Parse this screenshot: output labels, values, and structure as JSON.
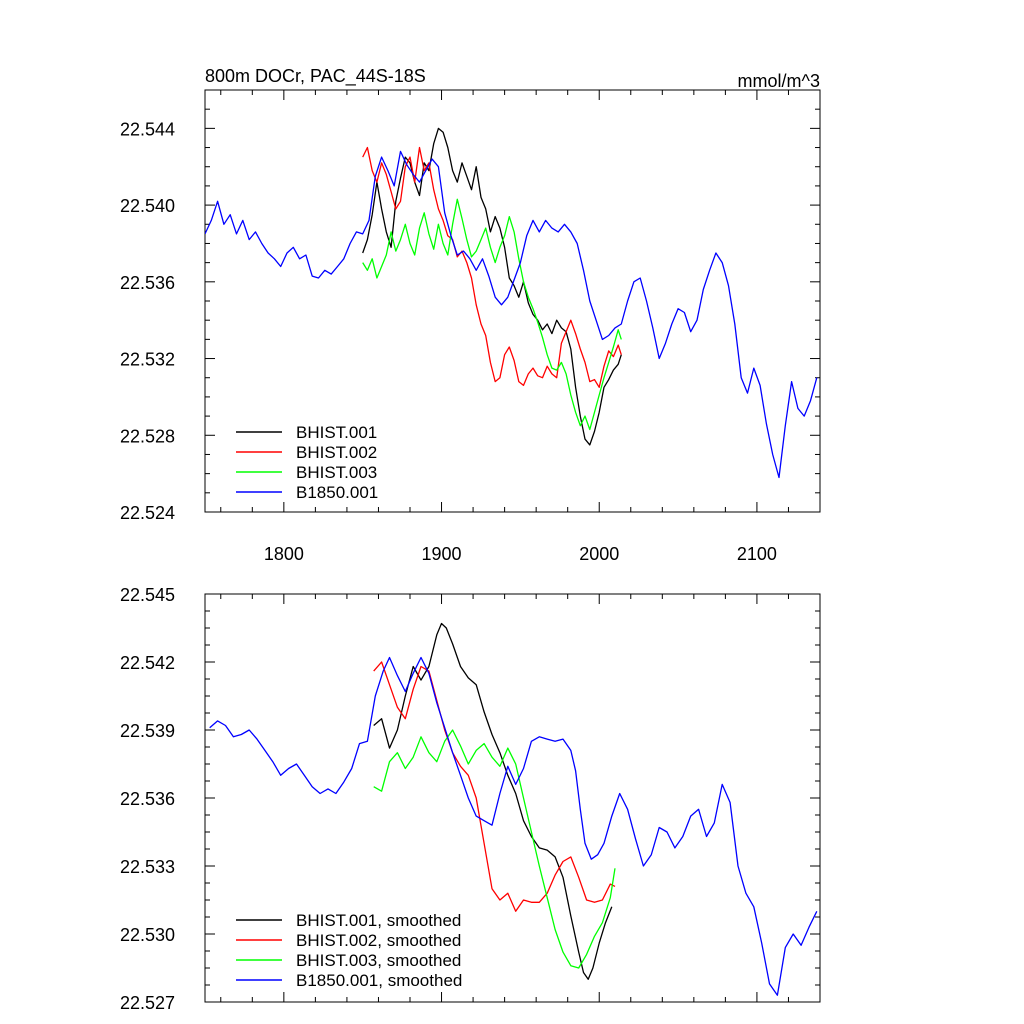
{
  "chart_data": [
    {
      "type": "line",
      "title": "800m DOCr, PAC_44S-18S",
      "units": "mmol/m^3",
      "xlim": [
        1750,
        2140
      ],
      "ylim": [
        22.524,
        22.546
      ],
      "xticks": [
        1800,
        1900,
        2000,
        2100
      ],
      "xtick_labels": [
        "1800",
        "1900",
        "2000",
        "2100"
      ],
      "yticks": [
        22.524,
        22.528,
        22.532,
        22.536,
        22.54,
        22.544
      ],
      "ytick_labels": [
        "22.524",
        "22.528",
        "22.532",
        "22.536",
        "22.540",
        "22.544"
      ],
      "legend_position": "bottom-left",
      "series": [
        {
          "name": "BHIST.001",
          "color": "#000000",
          "x": [
            1850,
            1853,
            1856,
            1859,
            1862,
            1865,
            1868,
            1871,
            1874,
            1877,
            1880,
            1883,
            1886,
            1889,
            1892,
            1895,
            1898,
            1901,
            1904,
            1907,
            1910,
            1913,
            1916,
            1919,
            1922,
            1925,
            1928,
            1931,
            1934,
            1937,
            1940,
            1943,
            1946,
            1949,
            1952,
            1955,
            1958,
            1961,
            1964,
            1967,
            1970,
            1973,
            1976,
            1979,
            1982,
            1985,
            1988,
            1991,
            1994,
            1997,
            2000,
            2003,
            2006,
            2009,
            2012,
            2014
          ],
          "y": [
            22.5375,
            22.5382,
            22.5395,
            22.5412,
            22.5398,
            22.5386,
            22.5378,
            22.5402,
            22.5414,
            22.5425,
            22.5422,
            22.5412,
            22.5405,
            22.5422,
            22.5418,
            22.5432,
            22.544,
            22.5438,
            22.543,
            22.5418,
            22.5412,
            22.5422,
            22.5415,
            22.5408,
            22.542,
            22.5404,
            22.5398,
            22.5386,
            22.5394,
            22.5388,
            22.5378,
            22.5362,
            22.5358,
            22.5352,
            22.536,
            22.5349,
            22.5343,
            22.534,
            22.5335,
            22.5338,
            22.5333,
            22.534,
            22.5336,
            22.5334,
            22.5325,
            22.5305,
            22.529,
            22.5278,
            22.5275,
            22.5282,
            22.5292,
            22.5305,
            22.5309,
            22.5314,
            22.5317,
            22.5322
          ]
        },
        {
          "name": "BHIST.002",
          "color": "#ff0000",
          "x": [
            1850,
            1853,
            1856,
            1859,
            1862,
            1865,
            1868,
            1871,
            1874,
            1877,
            1880,
            1883,
            1886,
            1889,
            1892,
            1895,
            1898,
            1901,
            1904,
            1907,
            1910,
            1913,
            1916,
            1919,
            1922,
            1925,
            1928,
            1931,
            1934,
            1937,
            1940,
            1943,
            1946,
            1949,
            1952,
            1955,
            1958,
            1961,
            1964,
            1967,
            1970,
            1973,
            1976,
            1979,
            1982,
            1985,
            1988,
            1991,
            1994,
            1997,
            2000,
            2003,
            2006,
            2009,
            2012,
            2014
          ],
          "y": [
            22.5425,
            22.543,
            22.5418,
            22.5412,
            22.5422,
            22.5416,
            22.5407,
            22.5398,
            22.5402,
            22.542,
            22.5425,
            22.5412,
            22.543,
            22.5418,
            22.5422,
            22.5408,
            22.5398,
            22.5392,
            22.5384,
            22.5382,
            22.5373,
            22.5376,
            22.537,
            22.5362,
            22.5348,
            22.5338,
            22.5332,
            22.5318,
            22.5308,
            22.531,
            22.5322,
            22.5326,
            22.5319,
            22.5308,
            22.5306,
            22.5312,
            22.5315,
            22.5311,
            22.531,
            22.5316,
            22.5312,
            22.531,
            22.5328,
            22.5334,
            22.534,
            22.5333,
            22.5325,
            22.5318,
            22.5308,
            22.5309,
            22.5305,
            22.5316,
            22.5324,
            22.5321,
            22.5327,
            22.5322
          ]
        },
        {
          "name": "BHIST.003",
          "color": "#00ff00",
          "x": [
            1850,
            1853,
            1856,
            1859,
            1862,
            1865,
            1868,
            1871,
            1874,
            1877,
            1880,
            1883,
            1886,
            1889,
            1892,
            1895,
            1898,
            1901,
            1904,
            1907,
            1910,
            1913,
            1916,
            1919,
            1922,
            1925,
            1928,
            1931,
            1934,
            1937,
            1940,
            1943,
            1946,
            1949,
            1952,
            1955,
            1958,
            1961,
            1964,
            1967,
            1970,
            1973,
            1976,
            1979,
            1982,
            1985,
            1988,
            1991,
            1994,
            1997,
            2000,
            2003,
            2006,
            2009,
            2012,
            2014
          ],
          "y": [
            22.537,
            22.5366,
            22.5372,
            22.5362,
            22.5368,
            22.5374,
            22.5386,
            22.5376,
            22.5382,
            22.539,
            22.538,
            22.5374,
            22.5388,
            22.5396,
            22.5385,
            22.5377,
            22.539,
            22.538,
            22.5374,
            22.539,
            22.5403,
            22.5393,
            22.5382,
            22.5373,
            22.5376,
            22.5382,
            22.5388,
            22.5378,
            22.537,
            22.5378,
            22.5384,
            22.5394,
            22.5386,
            22.5372,
            22.536,
            22.5352,
            22.5346,
            22.5339,
            22.5331,
            22.5322,
            22.5315,
            22.5314,
            22.5318,
            22.5312,
            22.5301,
            22.5292,
            22.5285,
            22.529,
            22.5283,
            22.5292,
            22.5301,
            22.531,
            22.5318,
            22.5326,
            22.5335,
            22.533
          ]
        },
        {
          "name": "B1850.001",
          "color": "#0000ff",
          "x": [
            1750,
            1754,
            1758,
            1762,
            1766,
            1770,
            1774,
            1778,
            1782,
            1786,
            1790,
            1794,
            1798,
            1802,
            1806,
            1810,
            1814,
            1818,
            1822,
            1826,
            1830,
            1834,
            1838,
            1842,
            1846,
            1850,
            1854,
            1858,
            1862,
            1866,
            1870,
            1874,
            1878,
            1882,
            1886,
            1890,
            1894,
            1898,
            1902,
            1906,
            1910,
            1914,
            1918,
            1922,
            1926,
            1930,
            1934,
            1938,
            1942,
            1946,
            1950,
            1954,
            1958,
            1962,
            1966,
            1970,
            1974,
            1978,
            1982,
            1986,
            1990,
            1994,
            1998,
            2002,
            2006,
            2010,
            2014,
            2018,
            2022,
            2026,
            2030,
            2034,
            2038,
            2042,
            2046,
            2050,
            2054,
            2058,
            2062,
            2066,
            2070,
            2074,
            2078,
            2082,
            2086,
            2090,
            2094,
            2098,
            2102,
            2106,
            2110,
            2114,
            2118,
            2122,
            2126,
            2130,
            2134,
            2138
          ],
          "y": [
            22.5385,
            22.5392,
            22.5402,
            22.539,
            22.5395,
            22.5385,
            22.5392,
            22.5382,
            22.5386,
            22.538,
            22.5375,
            22.5372,
            22.5368,
            22.5375,
            22.5378,
            22.5372,
            22.5374,
            22.5363,
            22.5362,
            22.5366,
            22.5364,
            22.5368,
            22.5372,
            22.538,
            22.5386,
            22.5385,
            22.5392,
            22.5415,
            22.5425,
            22.5418,
            22.541,
            22.5428,
            22.5421,
            22.5416,
            22.5412,
            22.5418,
            22.5424,
            22.542,
            22.5396,
            22.5384,
            22.5374,
            22.5376,
            22.5372,
            22.5366,
            22.5372,
            22.5363,
            22.5352,
            22.5348,
            22.5352,
            22.5361,
            22.537,
            22.5384,
            22.5392,
            22.5386,
            22.5392,
            22.5388,
            22.5386,
            22.539,
            22.5386,
            22.538,
            22.5366,
            22.535,
            22.534,
            22.533,
            22.5332,
            22.5336,
            22.5338,
            22.535,
            22.536,
            22.5362,
            22.535,
            22.5336,
            22.532,
            22.5328,
            22.5338,
            22.5346,
            22.5344,
            22.5334,
            22.534,
            22.5356,
            22.5366,
            22.5375,
            22.537,
            22.5358,
            22.5338,
            22.531,
            22.5302,
            22.5315,
            22.5306,
            22.5286,
            22.527,
            22.5258,
            22.5285,
            22.5308,
            22.5294,
            22.529,
            22.5298,
            22.531
          ]
        }
      ]
    },
    {
      "type": "line",
      "title": "",
      "xlim": [
        1750,
        2140
      ],
      "ylim": [
        22.527,
        22.545
      ],
      "yticks": [
        22.527,
        22.53,
        22.533,
        22.536,
        22.539,
        22.542,
        22.545
      ],
      "ytick_labels": [
        "22.527",
        "22.530",
        "22.533",
        "22.536",
        "22.539",
        "22.542",
        "22.545"
      ],
      "legend_position": "bottom-left",
      "series": [
        {
          "name": "BHIST.001, smoothed",
          "color": "#000000",
          "x": [
            1857,
            1862,
            1867,
            1872,
            1877,
            1882,
            1887,
            1892,
            1897,
            1900,
            1903,
            1907,
            1912,
            1917,
            1922,
            1927,
            1932,
            1937,
            1942,
            1947,
            1952,
            1957,
            1962,
            1967,
            1972,
            1977,
            1982,
            1987,
            1990,
            1993,
            1996,
            2000,
            2004,
            2008
          ],
          "y": [
            22.5392,
            22.5395,
            22.5382,
            22.539,
            22.5405,
            22.5418,
            22.5412,
            22.5418,
            22.5432,
            22.5437,
            22.5435,
            22.5428,
            22.5418,
            22.5413,
            22.541,
            22.5398,
            22.5388,
            22.538,
            22.537,
            22.5362,
            22.535,
            22.5343,
            22.5338,
            22.5337,
            22.5334,
            22.5325,
            22.5308,
            22.5292,
            22.5283,
            22.528,
            22.5285,
            22.5296,
            22.5305,
            22.5312
          ]
        },
        {
          "name": "BHIST.002, smoothed",
          "color": "#ff0000",
          "x": [
            1857,
            1862,
            1867,
            1872,
            1877,
            1882,
            1887,
            1892,
            1897,
            1902,
            1907,
            1912,
            1917,
            1922,
            1927,
            1932,
            1937,
            1942,
            1947,
            1952,
            1957,
            1962,
            1967,
            1972,
            1977,
            1982,
            1987,
            1992,
            1997,
            2002,
            2007,
            2010
          ],
          "y": [
            22.5416,
            22.542,
            22.541,
            22.54,
            22.5395,
            22.5408,
            22.5418,
            22.5416,
            22.5403,
            22.539,
            22.538,
            22.5374,
            22.537,
            22.536,
            22.534,
            22.532,
            22.5315,
            22.5318,
            22.531,
            22.5315,
            22.5314,
            22.5314,
            22.5318,
            22.5326,
            22.5332,
            22.5334,
            22.5325,
            22.5315,
            22.5314,
            22.5315,
            22.5322,
            22.5321
          ]
        },
        {
          "name": "BHIST.003, smoothed",
          "color": "#00ff00",
          "x": [
            1857,
            1862,
            1867,
            1872,
            1877,
            1882,
            1887,
            1892,
            1897,
            1902,
            1907,
            1912,
            1917,
            1922,
            1927,
            1932,
            1937,
            1942,
            1947,
            1952,
            1957,
            1962,
            1967,
            1972,
            1977,
            1982,
            1987,
            1992,
            1997,
            2002,
            2007,
            2010
          ],
          "y": [
            22.5365,
            22.5363,
            22.5376,
            22.538,
            22.5373,
            22.5378,
            22.5387,
            22.538,
            22.5376,
            22.5385,
            22.539,
            22.5383,
            22.5375,
            22.5381,
            22.5384,
            22.5378,
            22.5374,
            22.5382,
            22.5375,
            22.536,
            22.5345,
            22.533,
            22.5316,
            22.5302,
            22.5292,
            22.5286,
            22.5285,
            22.5291,
            22.5299,
            22.5305,
            22.5316,
            22.5329
          ]
        },
        {
          "name": "B1850.001, smoothed",
          "color": "#0000ff",
          "x": [
            1753,
            1758,
            1763,
            1768,
            1773,
            1778,
            1783,
            1788,
            1793,
            1798,
            1803,
            1808,
            1813,
            1818,
            1823,
            1828,
            1833,
            1838,
            1843,
            1848,
            1853,
            1858,
            1863,
            1867,
            1872,
            1877,
            1882,
            1887,
            1892,
            1897,
            1902,
            1907,
            1912,
            1917,
            1922,
            1927,
            1932,
            1937,
            1942,
            1947,
            1952,
            1957,
            1962,
            1967,
            1972,
            1977,
            1982,
            1985,
            1988,
            1991,
            1995,
            1999,
            2003,
            2008,
            2013,
            2018,
            2023,
            2028,
            2033,
            2038,
            2043,
            2048,
            2053,
            2058,
            2063,
            2068,
            2073,
            2078,
            2083,
            2088,
            2093,
            2098,
            2103,
            2108,
            2113,
            2118,
            2123,
            2128,
            2133,
            2138
          ],
          "y": [
            22.5391,
            22.5394,
            22.5392,
            22.5387,
            22.5388,
            22.539,
            22.5386,
            22.5381,
            22.5376,
            22.537,
            22.5373,
            22.5375,
            22.537,
            22.5365,
            22.5362,
            22.5364,
            22.5362,
            22.5367,
            22.5373,
            22.5384,
            22.5385,
            22.5405,
            22.5416,
            22.5422,
            22.5414,
            22.5407,
            22.5415,
            22.5422,
            22.5415,
            22.5402,
            22.5391,
            22.538,
            22.537,
            22.536,
            22.5352,
            22.535,
            22.5348,
            22.5362,
            22.5374,
            22.5366,
            22.5373,
            22.5385,
            22.5387,
            22.5386,
            22.5385,
            22.5386,
            22.5381,
            22.5372,
            22.5355,
            22.534,
            22.5333,
            22.5335,
            22.534,
            22.5352,
            22.5362,
            22.5355,
            22.5342,
            22.533,
            22.5335,
            22.5347,
            22.5345,
            22.5338,
            22.5343,
            22.5352,
            22.5355,
            22.5343,
            22.5349,
            22.5366,
            22.5358,
            22.533,
            22.5318,
            22.5312,
            22.5296,
            22.5278,
            22.5273,
            22.5294,
            22.53,
            22.5295,
            22.5303,
            22.531
          ]
        }
      ]
    }
  ]
}
